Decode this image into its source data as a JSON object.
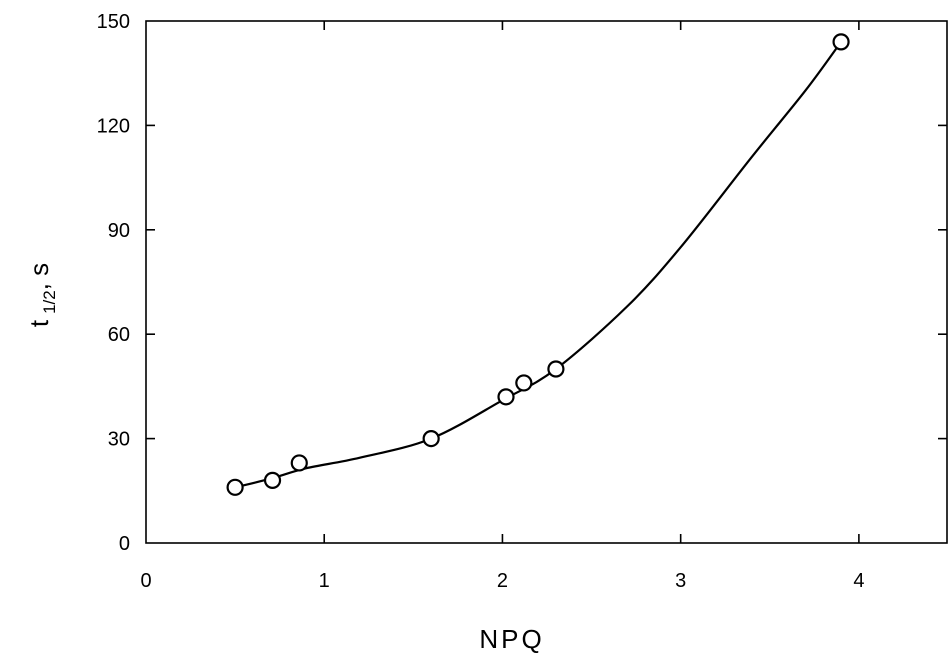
{
  "chart_data": {
    "type": "scatter",
    "title": "",
    "xlabel": "NPQ",
    "ylabel": {
      "main": "t",
      "subscript": "1/2",
      "suffix": ", s"
    },
    "xlim": [
      0,
      4.5
    ],
    "ylim": [
      0,
      150
    ],
    "x_ticks": [
      0,
      1,
      2,
      3,
      4
    ],
    "y_ticks": [
      0,
      30,
      60,
      90,
      120,
      150
    ],
    "grid": false,
    "legend": "none",
    "series": [
      {
        "points": [
          {
            "x": 0.5,
            "y": 16
          },
          {
            "x": 0.71,
            "y": 18
          },
          {
            "x": 0.86,
            "y": 23
          },
          {
            "x": 1.6,
            "y": 30
          },
          {
            "x": 2.02,
            "y": 42
          },
          {
            "x": 2.12,
            "y": 46
          },
          {
            "x": 2.3,
            "y": 50
          },
          {
            "x": 3.9,
            "y": 144
          }
        ],
        "marker": "open-circle",
        "color": "#000000"
      }
    ],
    "fit_curve": {
      "style": "smooth-line",
      "color": "#000000",
      "points": [
        {
          "x": 0.5,
          "y": 16
        },
        {
          "x": 0.7,
          "y": 18.5
        },
        {
          "x": 0.9,
          "y": 21.5
        },
        {
          "x": 1.2,
          "y": 24.5
        },
        {
          "x": 1.6,
          "y": 30
        },
        {
          "x": 2.0,
          "y": 41
        },
        {
          "x": 2.3,
          "y": 50
        },
        {
          "x": 2.7,
          "y": 68
        },
        {
          "x": 3.0,
          "y": 85
        },
        {
          "x": 3.4,
          "y": 111
        },
        {
          "x": 3.7,
          "y": 130
        },
        {
          "x": 3.9,
          "y": 144
        }
      ]
    }
  }
}
